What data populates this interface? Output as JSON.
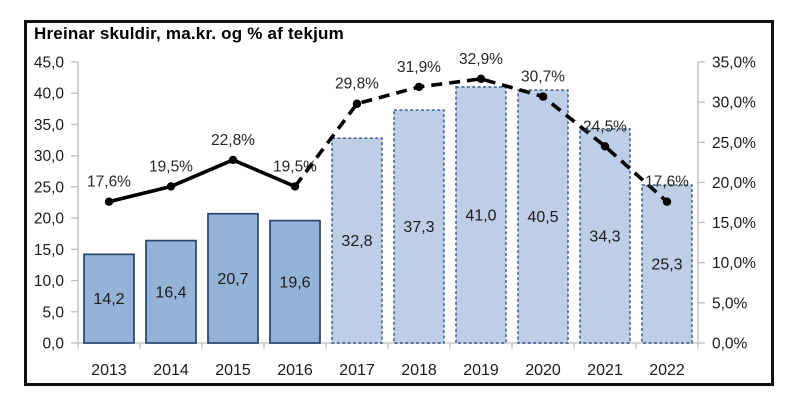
{
  "chart_data": {
    "type": "bar+line",
    "title": "Hreinar skuldir, ma.kr. og % af tekjum",
    "categories": [
      "2013",
      "2014",
      "2015",
      "2016",
      "2017",
      "2018",
      "2019",
      "2020",
      "2021",
      "2022"
    ],
    "series": [
      {
        "name": "bars-net-debt-ma-kr",
        "type": "bar",
        "axis": "left",
        "values": [
          14.2,
          16.4,
          20.7,
          19.6,
          32.8,
          37.3,
          41.0,
          40.5,
          34.3,
          25.3
        ],
        "labels": [
          "14,2",
          "16,4",
          "20,7",
          "19,6",
          "32,8",
          "37,3",
          "41,0",
          "40,5",
          "34,3",
          "25,3"
        ]
      },
      {
        "name": "line-pct-of-revenue",
        "type": "line",
        "axis": "right",
        "values": [
          17.6,
          19.5,
          22.8,
          19.5,
          29.8,
          31.9,
          32.9,
          30.7,
          24.5,
          17.6
        ],
        "labels": [
          "17,6%",
          "19,5%",
          "22,8%",
          "19,5%",
          "29,8%",
          "31,9%",
          "32,9%",
          "30,7%",
          "24,5%",
          "17,6%"
        ]
      }
    ],
    "forecast_start_index": 4,
    "left_axis": {
      "min": 0,
      "max": 45,
      "tick_step": 5,
      "tick_labels": [
        "0,0",
        "5,0",
        "10,0",
        "15,0",
        "20,0",
        "25,0",
        "30,0",
        "35,0",
        "40,0",
        "45,0"
      ]
    },
    "right_axis": {
      "min": 0,
      "max": 35,
      "tick_step": 5,
      "tick_labels": [
        "0,0%",
        "5,0%",
        "10,0%",
        "15,0%",
        "20,0%",
        "25,0%",
        "30,0%",
        "35,0%"
      ]
    },
    "legend": "none",
    "grid": "off",
    "colors": {
      "bar_actual_fill": "#95B3D7",
      "bar_actual_border": "#24466B",
      "bar_forecast_fill": "#BDCEE6",
      "bar_forecast_border": "#2E5384",
      "line": "#000000",
      "axis": "#BFBFBF",
      "text": "#1A1A1A",
      "label_text": "#262626"
    }
  }
}
